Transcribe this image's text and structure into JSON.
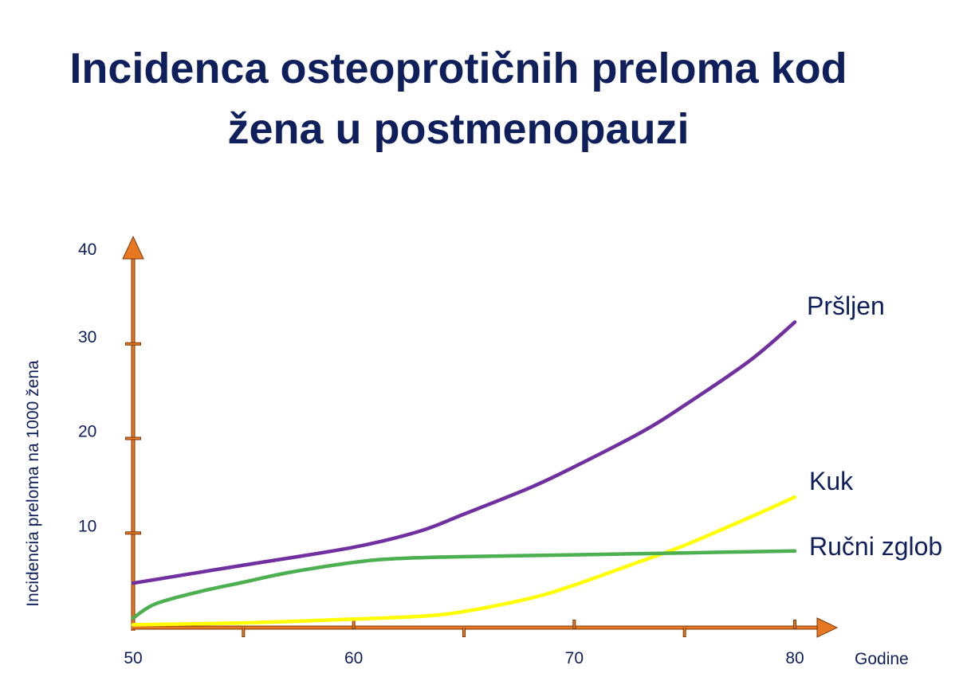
{
  "chart_data": {
    "type": "line",
    "title": "Incidenca osteoprotičnih preloma kod žena u postmenopauzi",
    "title_lines": [
      "Incidenca osteoprotičnih preloma kod",
      "žena u postmenopauzi"
    ],
    "xlabel": "Godine",
    "ylabel": "Incidencia preloma na  1000 žena",
    "xlim": [
      50,
      80
    ],
    "ylim": [
      0,
      40
    ],
    "x_ticks": [
      50,
      60,
      70,
      80
    ],
    "x_minor_ticks": [
      55,
      65,
      75
    ],
    "y_ticks": [
      10,
      20,
      30,
      40
    ],
    "grid": false,
    "legend": "inline labels at line ends",
    "colors": {
      "axis": "#e87722",
      "axis_stroke": "#7a3a0a",
      "text": "#0f1f5c"
    },
    "series": [
      {
        "name": "Pršljen",
        "color": "#7030a0",
        "x": [
          50,
          55,
          60,
          63,
          65,
          68,
          70,
          73,
          75,
          78,
          80
        ],
        "y": [
          4.7,
          6.6,
          8.5,
          10.2,
          12,
          14.8,
          17,
          20.6,
          23.5,
          28.3,
          32.3
        ]
      },
      {
        "name": "Kuk",
        "color": "#ffff00",
        "x": [
          50,
          55,
          60,
          63,
          65,
          68,
          70,
          73,
          75,
          78,
          80
        ],
        "y": [
          0.3,
          0.5,
          0.9,
          1.2,
          1.7,
          3.1,
          4.5,
          7.0,
          8.7,
          11.7,
          13.8
        ]
      },
      {
        "name": "Ručni zglob",
        "color": "#4caf50",
        "x": [
          50,
          51,
          53,
          55,
          57,
          60,
          62,
          65,
          70,
          75,
          80
        ],
        "y": [
          1,
          2.5,
          3.8,
          4.8,
          5.8,
          6.9,
          7.3,
          7.5,
          7.7,
          7.9,
          8.1
        ]
      }
    ]
  }
}
